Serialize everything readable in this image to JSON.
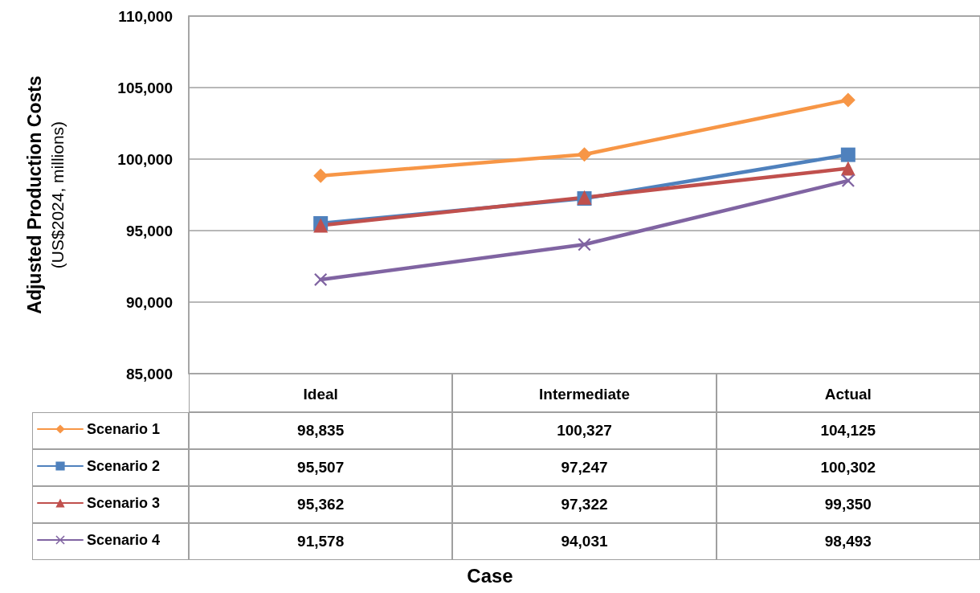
{
  "chart_data": {
    "type": "line",
    "ylabel": "Adjusted Production Costs\n(US$2024, millions)",
    "annotations": [
      "Case"
    ],
    "categories": [
      "Ideal",
      "Intermediate",
      "Actual"
    ],
    "series": [
      {
        "name": "Scenario 1",
        "color": "#f79646",
        "marker": "diamond",
        "values": [
          98835,
          100327,
          104125
        ],
        "value_labels": [
          "98,835",
          "100,327",
          "104,125"
        ]
      },
      {
        "name": "Scenario 2",
        "color": "#4f81bd",
        "marker": "square",
        "values": [
          95507,
          97247,
          100302
        ],
        "value_labels": [
          "95,507",
          "97,247",
          "100,302"
        ]
      },
      {
        "name": "Scenario 3",
        "color": "#c0504d",
        "marker": "triangle",
        "values": [
          95362,
          97322,
          99350
        ],
        "value_labels": [
          "95,362",
          "97,322",
          "99,350"
        ]
      },
      {
        "name": "Scenario 4",
        "color": "#8064a2",
        "marker": "cross",
        "values": [
          91578,
          94031,
          98493
        ],
        "value_labels": [
          "91,578",
          "94,031",
          "98,493"
        ]
      }
    ],
    "ylim": [
      85000,
      110000
    ],
    "yticks": [
      {
        "value": 85000,
        "label": "85,000"
      },
      {
        "value": 90000,
        "label": "90,000"
      },
      {
        "value": 95000,
        "label": "95,000"
      },
      {
        "value": 100000,
        "label": "100,000"
      },
      {
        "value": 105000,
        "label": "105,000"
      },
      {
        "value": 110000,
        "label": "110,000"
      }
    ],
    "grid": "y",
    "legend": "bottom left",
    "line_style": "solid"
  }
}
